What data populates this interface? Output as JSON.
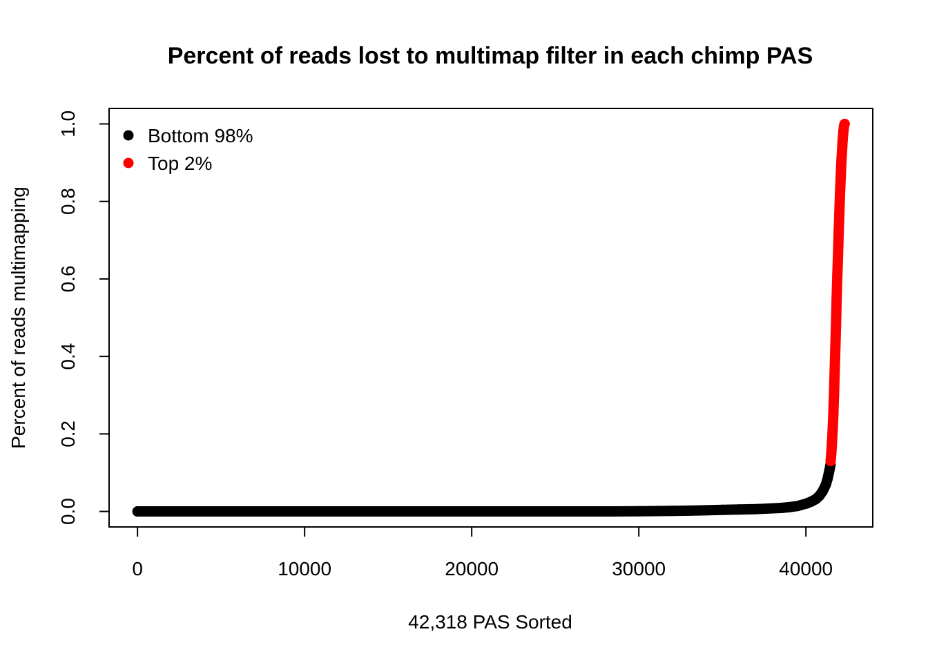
{
  "chart_data": {
    "type": "scatter",
    "title": "Percent of reads lost to multimap filter in each chimp PAS",
    "xlabel": "42,318 PAS Sorted",
    "ylabel": "Percent of reads multimapping",
    "xlim": [
      -1700,
      44000
    ],
    "ylim": [
      -0.04,
      1.04
    ],
    "x_ticks": [
      0,
      10000,
      20000,
      30000,
      40000
    ],
    "x_tick_labels": [
      "0",
      "10000",
      "20000",
      "30000",
      "40000"
    ],
    "y_ticks": [
      0.0,
      0.2,
      0.4,
      0.6,
      0.8,
      1.0
    ],
    "y_tick_labels": [
      "0.0",
      "0.2",
      "0.4",
      "0.6",
      "0.8",
      "1.0"
    ],
    "grid": false,
    "legend_position": "top-left",
    "series": [
      {
        "name": "Bottom 98%",
        "color": "#000000",
        "x": [
          1,
          2000,
          5000,
          10000,
          15000,
          20000,
          25000,
          28000,
          30000,
          31000,
          32000,
          33000,
          34000,
          35000,
          36000,
          37000,
          38000,
          38500,
          39000,
          39500,
          40000,
          40300,
          40600,
          40800,
          41000,
          41200,
          41300,
          41400,
          41470
        ],
        "y": [
          0.0,
          0.0,
          0.0,
          0.0,
          0.0,
          0.0,
          0.0,
          0.0,
          0.0005,
          0.001,
          0.0015,
          0.002,
          0.003,
          0.004,
          0.005,
          0.006,
          0.008,
          0.009,
          0.011,
          0.014,
          0.02,
          0.025,
          0.032,
          0.04,
          0.052,
          0.07,
          0.085,
          0.105,
          0.12
        ]
      },
      {
        "name": "Top 2%",
        "color": "#ff0000",
        "x": [
          41480,
          41520,
          41560,
          41600,
          41640,
          41680,
          41720,
          41760,
          41800,
          41840,
          41880,
          41920,
          41960,
          42000,
          42040,
          42080,
          42120,
          42160,
          42200,
          42240,
          42280,
          42318
        ],
        "y": [
          0.13,
          0.15,
          0.18,
          0.21,
          0.25,
          0.3,
          0.36,
          0.42,
          0.48,
          0.55,
          0.61,
          0.66,
          0.72,
          0.77,
          0.82,
          0.86,
          0.9,
          0.93,
          0.96,
          0.98,
          0.995,
          1.0
        ]
      }
    ]
  }
}
